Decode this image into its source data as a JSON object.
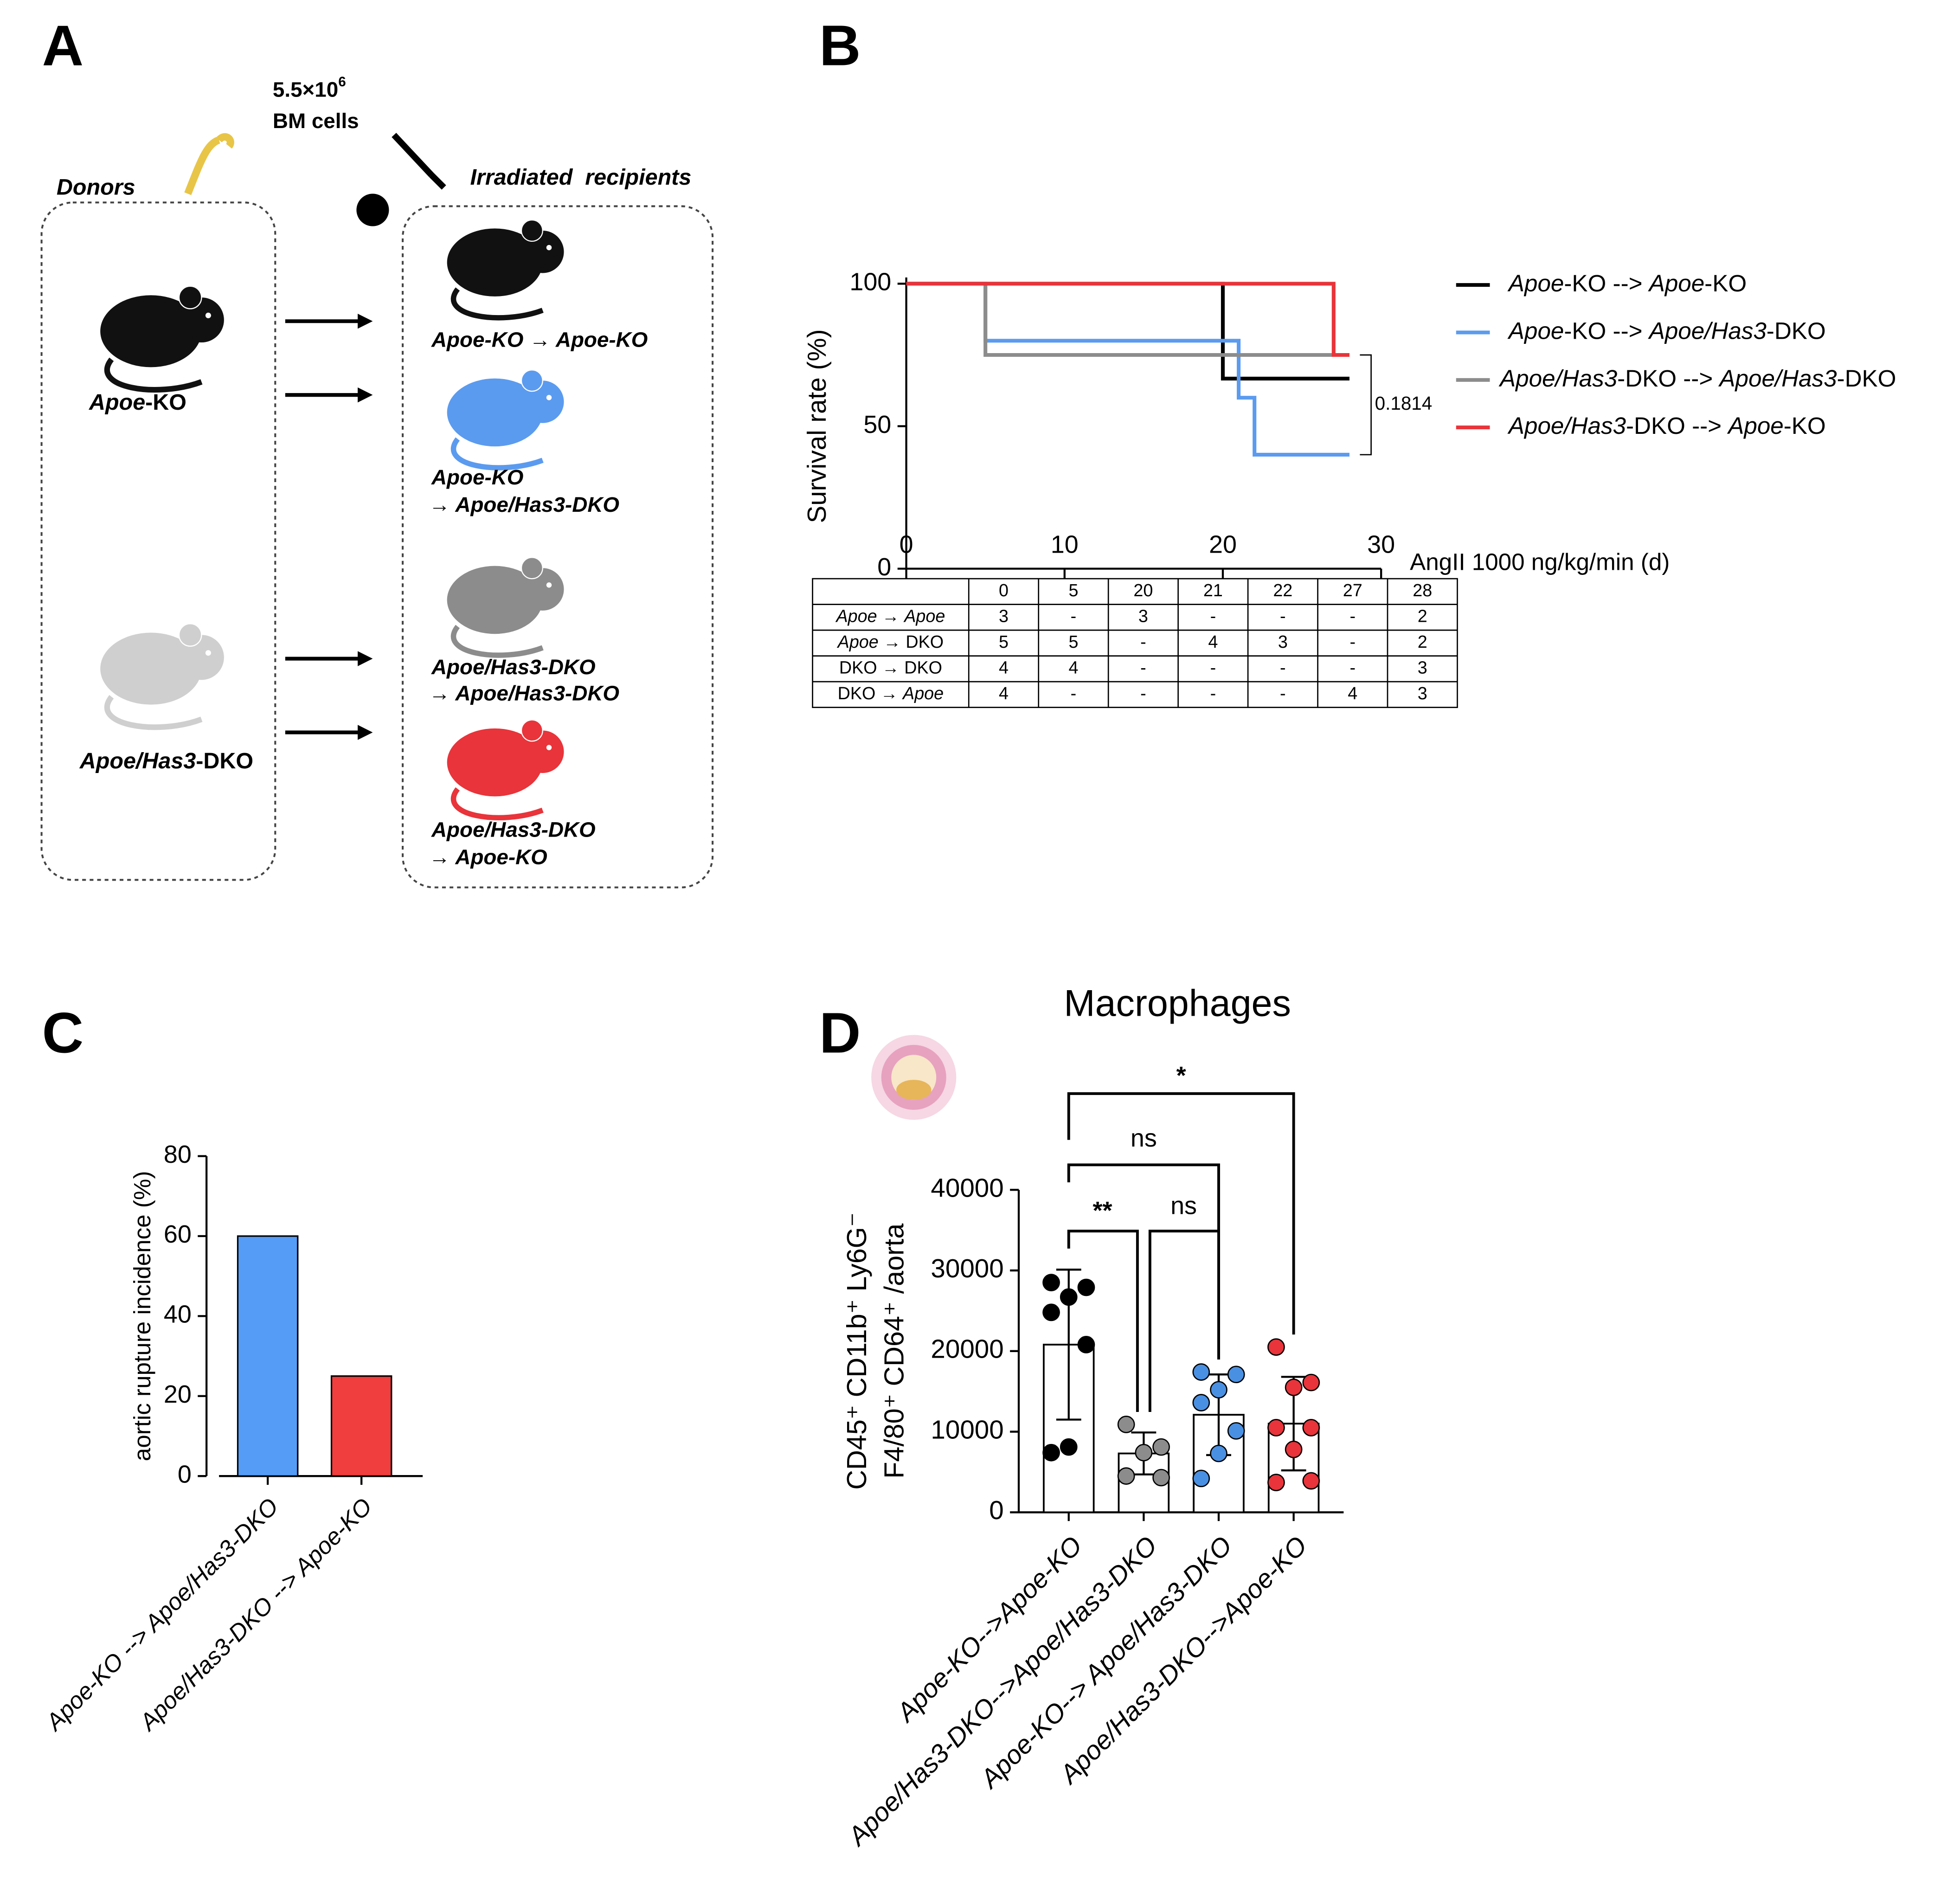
{
  "panel_labels": [
    "A",
    "B",
    "C",
    "D"
  ],
  "diagram": {
    "dose": "5.5×10",
    "dose_exp": "6",
    "dose_unit": "BM cells",
    "donors_title": "Donors",
    "recipients_title": "Irradiated  recipients",
    "donors": [
      {
        "label": [
          {
            "text": "Apoe",
            "italic": true
          },
          {
            "text": "-KO"
          }
        ],
        "color": "#111111"
      },
      {
        "label": [
          {
            "text": "Apoe/Has3",
            "italic": true
          },
          {
            "text": "-DKO"
          }
        ],
        "color": "#cfcfcf"
      }
    ],
    "recipients": [
      {
        "lines": [
          "Apoe-KO → Apoe-KO"
        ],
        "color": "#111111"
      },
      {
        "lines": [
          "Apoe-KO",
          "→ Apoe/Has3-DKO"
        ],
        "color": "#5b9bef"
      },
      {
        "lines": [
          "Apoe/Has3-DKO",
          "→ Apoe/Has3-DKO"
        ],
        "color": "#8c8c8c"
      },
      {
        "lines": [
          "Apoe/Has3-DKO",
          "→ Apoe-KO"
        ],
        "color": "#e8343a"
      }
    ]
  },
  "chart_data": [
    {
      "type": "step",
      "xlabel": "AngII 1000 ng/kg/min (d)",
      "ylabel": "Survival rate (%)",
      "xlim": [
        0,
        30
      ],
      "xticks": [
        0,
        10,
        20,
        30
      ],
      "ylim": [
        0,
        100
      ],
      "yticks": [
        0,
        50,
        100
      ],
      "series": [
        {
          "name": [
            {
              "text": "Apoe",
              "italic": true
            },
            {
              "text": "-KO --> "
            },
            {
              "text": "Apoe",
              "italic": true
            },
            {
              "text": "-KO"
            }
          ],
          "color": "#000000",
          "x": [
            0,
            20,
            28
          ],
          "values": [
            100,
            66.7,
            66.7
          ]
        },
        {
          "name": [
            {
              "text": "Apoe",
              "italic": true
            },
            {
              "text": "-KO --> "
            },
            {
              "text": "Apoe/Has3",
              "italic": true
            },
            {
              "text": "-DKO"
            }
          ],
          "color": "#5b9bef",
          "x": [
            0,
            5,
            21,
            22,
            28
          ],
          "values": [
            100,
            80,
            60,
            40,
            40
          ]
        },
        {
          "name": [
            {
              "text": "Apoe/Has3",
              "italic": true
            },
            {
              "text": "-DKO --> "
            },
            {
              "text": "Apoe/Has3",
              "italic": true
            },
            {
              "text": "-DKO"
            }
          ],
          "color": "#8c8c8c",
          "x": [
            0,
            5,
            28
          ],
          "values": [
            100,
            75,
            75
          ]
        },
        {
          "name": [
            {
              "text": "Apoe/Has3",
              "italic": true
            },
            {
              "text": "-DKO --> "
            },
            {
              "text": "Apoe",
              "italic": true
            },
            {
              "text": "-KO"
            }
          ],
          "color": "#e8343a",
          "x": [
            0,
            27,
            28
          ],
          "values": [
            100,
            75,
            75
          ]
        }
      ],
      "annotation": {
        "text": "0.1814",
        "y_range": [
          75,
          40
        ]
      }
    },
    {
      "type": "bar",
      "ylabel": "aortic rupture incidence (%)",
      "categories": [
        "Apoe-KO --> Apoe/Has3-DKO",
        "Apoe/Has3-DKO --> Apoe-KO"
      ],
      "values": [
        60,
        25
      ],
      "colors": [
        "#559cf7",
        "#f03d3d"
      ],
      "ylim": [
        0,
        80
      ],
      "yticks": [
        0,
        20,
        40,
        60,
        80
      ]
    },
    {
      "type": "dot-bar",
      "title": "Macrophages",
      "ylabel": [
        "CD45⁺ CD11b⁺ Ly6G⁻",
        "F4/80⁺ CD64⁺ /aorta"
      ],
      "categories": [
        "Apoe-KO-->Apoe-KO",
        "Apoe/Has3-DKO-->Apoe/Has3-DKO",
        "Apoe-KO--> Apoe/Has3-DKO",
        "Apoe/Has3-DKO-->Apoe-KO"
      ],
      "values": [
        20800,
        7300,
        12100,
        11000
      ],
      "errors": [
        9300,
        2600,
        5000,
        5800
      ],
      "points": [
        [
          28500,
          27900,
          26700,
          24800,
          20800,
          8100,
          7400
        ],
        [
          10900,
          8100,
          7400,
          4500,
          4300
        ],
        [
          17400,
          17100,
          15200,
          13600,
          10100,
          7300,
          4200
        ],
        [
          20500,
          16100,
          15500,
          10500,
          10500,
          7800,
          3700,
          3900
        ]
      ],
      "colors": [
        "#000000",
        "#8c8c8c",
        "#4a90e2",
        "#e8343a"
      ],
      "ylim": [
        0,
        40000
      ],
      "yticks": [
        0,
        10000,
        20000,
        30000,
        40000
      ],
      "comparisons": [
        {
          "groups": [
            0,
            3
          ],
          "label": "*"
        },
        {
          "groups": [
            0,
            2
          ],
          "label": "ns"
        },
        {
          "groups": [
            0,
            1
          ],
          "label": "**"
        },
        {
          "groups": [
            1,
            2
          ],
          "label": "ns"
        }
      ]
    }
  ],
  "table": {
    "columns": [
      "0",
      "5",
      "20",
      "21",
      "22",
      "27",
      "28"
    ],
    "rows": [
      {
        "label": [
          {
            "text": "Apoe",
            "italic": true
          },
          {
            "text": " → "
          },
          {
            "text": "Apoe",
            "italic": true
          }
        ],
        "cells": [
          "3",
          "-",
          "3",
          "-",
          "-",
          "-",
          "2"
        ]
      },
      {
        "label": [
          {
            "text": "Apoe",
            "italic": true
          },
          {
            "text": " → DKO"
          }
        ],
        "cells": [
          "5",
          "5",
          "-",
          "4",
          "3",
          "-",
          "2"
        ]
      },
      {
        "label": [
          {
            "text": "DKO → DKO"
          }
        ],
        "cells": [
          "4",
          "4",
          "-",
          "-",
          "-",
          "-",
          "3"
        ]
      },
      {
        "label": [
          {
            "text": "DKO → "
          },
          {
            "text": "Apoe",
            "italic": true
          }
        ],
        "cells": [
          "4",
          "-",
          "-",
          "-",
          "-",
          "4",
          "3"
        ]
      }
    ]
  }
}
